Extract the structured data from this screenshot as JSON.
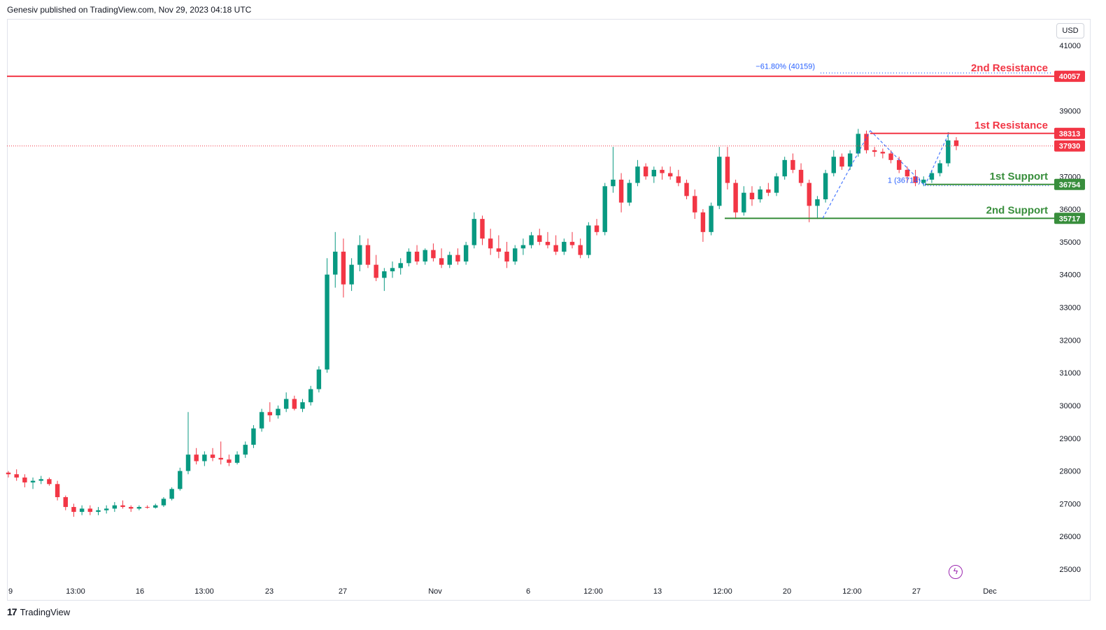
{
  "header": {
    "published": "Genesiv published on TradingView.com, Nov 29, 2023 04:18 UTC"
  },
  "footer": {
    "brand": "TradingView",
    "logo_icon": "tradingview-logo-icon"
  },
  "toolbar": {
    "currency": "USD"
  },
  "colors": {
    "up": "#089981",
    "down": "#f23645",
    "support": "#388e3c",
    "resistance": "#f23645",
    "fib": "#2962ff",
    "axis_text": "#131722"
  },
  "chart_data": {
    "type": "candlestick",
    "y_axis": {
      "ticks": [
        41000,
        40000,
        39000,
        38000,
        37000,
        36000,
        35000,
        34000,
        33000,
        32000,
        31000,
        30000,
        29000,
        28000,
        27000,
        26000,
        25000
      ],
      "labels": [
        "41000",
        "",
        "39000",
        "",
        "37000",
        "36000",
        "35000",
        "34000",
        "33000",
        "32000",
        "31000",
        "30000",
        "29000",
        "28000",
        "27000",
        "26000",
        "25000"
      ],
      "range": [
        24500,
        41500
      ]
    },
    "x_axis": {
      "labels": [
        "9",
        "13:00",
        "16",
        "13:00",
        "23",
        "27",
        "Nov",
        "6",
        "12:00",
        "13",
        "12:00",
        "20",
        "12:00",
        "27",
        "Dec"
      ]
    },
    "levels": [
      {
        "name": "2nd Resistance",
        "value": 40057,
        "label": "40057"
      },
      {
        "name": "1st Resistance",
        "value": 38313,
        "label": "38313"
      },
      {
        "name": "1st Support",
        "value": 36754,
        "label": "36754"
      },
      {
        "name": "2nd Support",
        "value": 35717,
        "label": "35717"
      }
    ],
    "last_price": {
      "value": 37930,
      "label": "37930"
    },
    "fib_labels": {
      "ext": "−61.80% (40159)",
      "one": "1 (36714)"
    },
    "ohlc": [
      [
        27950,
        28000,
        27800,
        27900
      ],
      [
        27900,
        28050,
        27700,
        27800
      ],
      [
        27800,
        27900,
        27500,
        27650
      ],
      [
        27650,
        27800,
        27450,
        27700
      ],
      [
        27700,
        27850,
        27600,
        27750
      ],
      [
        27750,
        27800,
        27550,
        27600
      ],
      [
        27600,
        27700,
        27100,
        27200
      ],
      [
        27200,
        27250,
        26800,
        26900
      ],
      [
        26900,
        27000,
        26600,
        26750
      ],
      [
        26750,
        26950,
        26650,
        26850
      ],
      [
        26850,
        26950,
        26650,
        26750
      ],
      [
        26750,
        26900,
        26650,
        26800
      ],
      [
        26800,
        26950,
        26700,
        26850
      ],
      [
        26850,
        27050,
        26750,
        26950
      ],
      [
        26950,
        27100,
        26850,
        26900
      ],
      [
        26900,
        26950,
        26750,
        26850
      ],
      [
        26850,
        26950,
        26800,
        26900
      ],
      [
        26900,
        26950,
        26850,
        26880
      ],
      [
        26880,
        27000,
        26850,
        26950
      ],
      [
        26950,
        27200,
        26900,
        27150
      ],
      [
        27150,
        27500,
        27100,
        27450
      ],
      [
        27450,
        28100,
        27400,
        28000
      ],
      [
        28000,
        29800,
        27900,
        28500
      ],
      [
        28500,
        28700,
        28200,
        28300
      ],
      [
        28300,
        28600,
        28150,
        28500
      ],
      [
        28500,
        28700,
        28300,
        28400
      ],
      [
        28400,
        28900,
        28200,
        28350
      ],
      [
        28350,
        28500,
        28150,
        28250
      ],
      [
        28250,
        28600,
        28200,
        28500
      ],
      [
        28500,
        28900,
        28400,
        28800
      ],
      [
        28800,
        29400,
        28700,
        29300
      ],
      [
        29300,
        29900,
        29200,
        29800
      ],
      [
        29800,
        30100,
        29500,
        29700
      ],
      [
        29700,
        30000,
        29600,
        29900
      ],
      [
        29900,
        30400,
        29800,
        30200
      ],
      [
        30200,
        30300,
        29850,
        29900
      ],
      [
        29900,
        30200,
        29800,
        30100
      ],
      [
        30100,
        30600,
        30000,
        30500
      ],
      [
        30500,
        31200,
        30400,
        31100
      ],
      [
        31100,
        34500,
        31000,
        34000
      ],
      [
        34000,
        35300,
        33600,
        34700
      ],
      [
        34700,
        35100,
        33300,
        33700
      ],
      [
        33700,
        34500,
        33500,
        34300
      ],
      [
        34300,
        35200,
        34100,
        34900
      ],
      [
        34900,
        35100,
        34200,
        34300
      ],
      [
        34300,
        34600,
        33800,
        33900
      ],
      [
        33900,
        34200,
        33500,
        34100
      ],
      [
        34100,
        34400,
        33900,
        34200
      ],
      [
        34200,
        34500,
        34000,
        34350
      ],
      [
        34350,
        34800,
        34250,
        34700
      ],
      [
        34700,
        34900,
        34300,
        34400
      ],
      [
        34400,
        34800,
        34300,
        34750
      ],
      [
        34750,
        34950,
        34400,
        34500
      ],
      [
        34500,
        34800,
        34200,
        34300
      ],
      [
        34300,
        34700,
        34200,
        34600
      ],
      [
        34600,
        34800,
        34300,
        34400
      ],
      [
        34400,
        35000,
        34300,
        34900
      ],
      [
        34900,
        35900,
        34800,
        35700
      ],
      [
        35700,
        35800,
        34900,
        35100
      ],
      [
        35100,
        35400,
        34600,
        34800
      ],
      [
        34800,
        35200,
        34500,
        34700
      ],
      [
        34700,
        35000,
        34200,
        34400
      ],
      [
        34400,
        34900,
        34300,
        34800
      ],
      [
        34800,
        35100,
        34600,
        34900
      ],
      [
        34900,
        35300,
        34800,
        35200
      ],
      [
        35200,
        35400,
        34900,
        35000
      ],
      [
        35000,
        35300,
        34800,
        34900
      ],
      [
        34900,
        35200,
        34600,
        34700
      ],
      [
        34700,
        35100,
        34600,
        35000
      ],
      [
        35000,
        35300,
        34800,
        34900
      ],
      [
        34900,
        35100,
        34500,
        34600
      ],
      [
        34600,
        35600,
        34500,
        35500
      ],
      [
        35500,
        35700,
        35200,
        35300
      ],
      [
        35300,
        36800,
        35200,
        36700
      ],
      [
        36700,
        37900,
        36500,
        36900
      ],
      [
        36900,
        37100,
        35900,
        36200
      ],
      [
        36200,
        36900,
        36100,
        36800
      ],
      [
        36800,
        37500,
        36700,
        37300
      ],
      [
        37300,
        37400,
        36900,
        37000
      ],
      [
        37000,
        37300,
        36800,
        37200
      ],
      [
        37200,
        37300,
        36900,
        37100
      ],
      [
        37100,
        37300,
        36900,
        37000
      ],
      [
        37000,
        37200,
        36700,
        36800
      ],
      [
        36800,
        36900,
        36300,
        36400
      ],
      [
        36400,
        36600,
        35700,
        35900
      ],
      [
        35900,
        36000,
        35000,
        35300
      ],
      [
        35300,
        36200,
        35200,
        36100
      ],
      [
        36100,
        37900,
        36000,
        37600
      ],
      [
        37600,
        37900,
        36600,
        36800
      ],
      [
        36800,
        36900,
        35700,
        35900
      ],
      [
        35900,
        36700,
        35800,
        36500
      ],
      [
        36500,
        36700,
        36100,
        36300
      ],
      [
        36300,
        36700,
        36200,
        36600
      ],
      [
        36600,
        36800,
        36400,
        36500
      ],
      [
        36500,
        37100,
        36400,
        37000
      ],
      [
        37000,
        37600,
        36900,
        37500
      ],
      [
        37500,
        37700,
        37100,
        37200
      ],
      [
        37200,
        37400,
        36700,
        36800
      ],
      [
        36800,
        36900,
        35600,
        36100
      ],
      [
        36100,
        36400,
        35700,
        36300
      ],
      [
        36300,
        37200,
        36200,
        37100
      ],
      [
        37100,
        37800,
        37000,
        37600
      ],
      [
        37600,
        37700,
        37200,
        37300
      ],
      [
        37300,
        37800,
        37200,
        37700
      ],
      [
        37700,
        38450,
        37600,
        38300
      ],
      [
        38300,
        38400,
        37700,
        37800
      ],
      [
        37800,
        37900,
        37600,
        37750
      ],
      [
        37750,
        37850,
        37550,
        37700
      ],
      [
        37700,
        37800,
        37400,
        37500
      ],
      [
        37500,
        37600,
        37100,
        37200
      ],
      [
        37200,
        37300,
        36800,
        37000
      ],
      [
        37000,
        37200,
        36700,
        36800
      ],
      [
        36800,
        37000,
        36700,
        36900
      ],
      [
        36900,
        37200,
        36800,
        37100
      ],
      [
        37100,
        37500,
        37000,
        37400
      ],
      [
        37400,
        38350,
        37300,
        38100
      ],
      [
        38100,
        38200,
        37800,
        37930
      ]
    ]
  }
}
